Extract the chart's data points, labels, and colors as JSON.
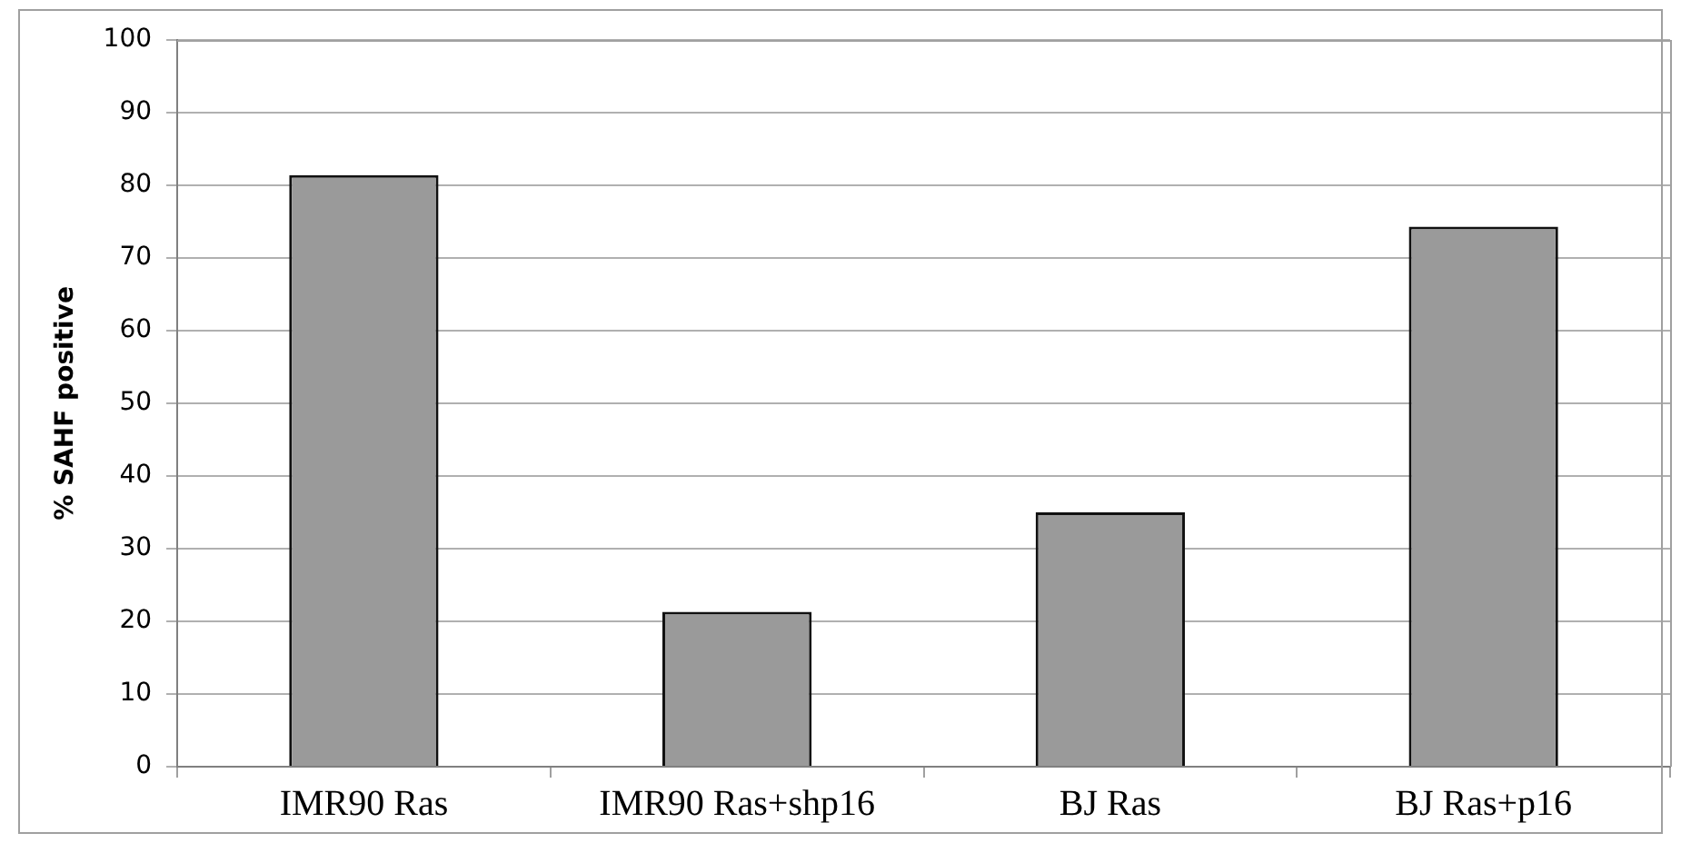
{
  "chart_data": {
    "type": "bar",
    "ylabel": "% SAHF positive",
    "categories": [
      "IMR90 Ras",
      "IMR90 Ras+shp16",
      "BJ Ras",
      "BJ Ras+p16"
    ],
    "values": [
      81.4,
      21.3,
      35.0,
      74.3
    ],
    "color": "#9a9a9a",
    "ylim": [
      0,
      100
    ],
    "yticks": [
      0,
      10,
      20,
      30,
      40,
      50,
      60,
      70,
      80,
      90,
      100
    ],
    "grid": "y",
    "legend": false
  }
}
